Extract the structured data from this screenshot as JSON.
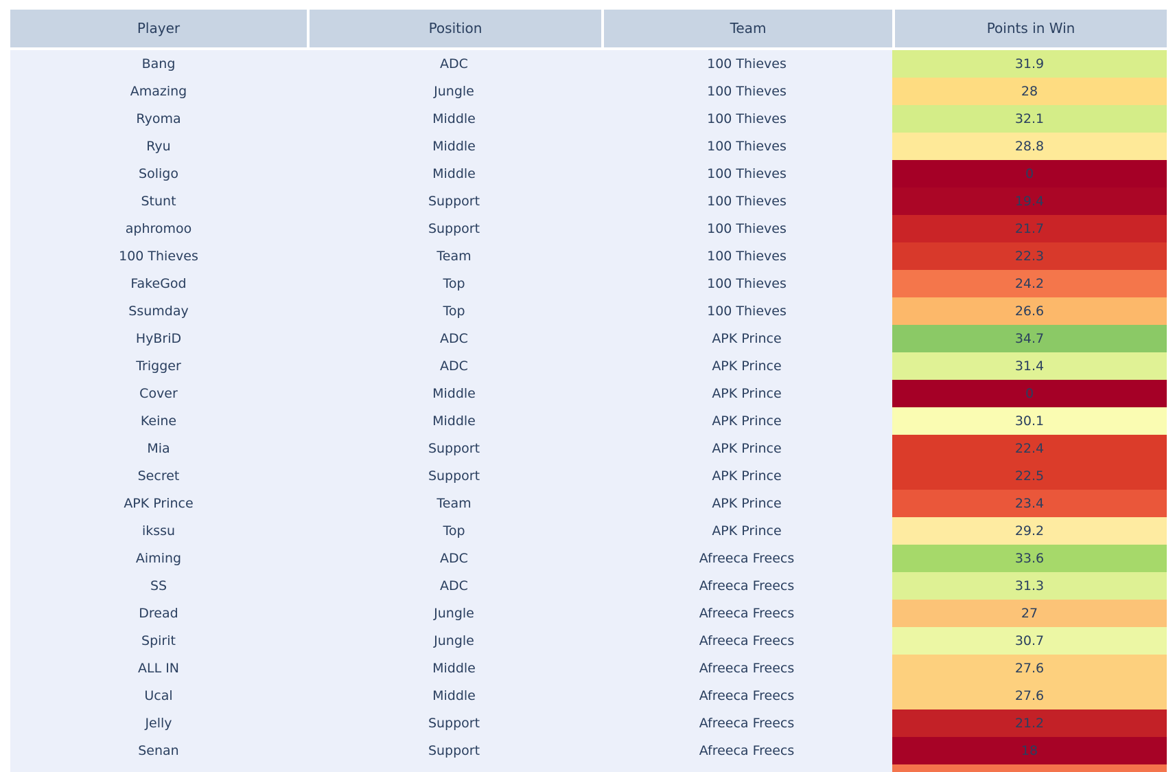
{
  "chart_data": {
    "type": "table",
    "columns": [
      "Player",
      "Position",
      "Team",
      "Points in Win"
    ],
    "rows": [
      {
        "player": "Bang",
        "position": "ADC",
        "team": "100 Thieves",
        "points": "31.9",
        "points_color": "#d9ee8b"
      },
      {
        "player": "Amazing",
        "position": "Jungle",
        "team": "100 Thieves",
        "points": "28",
        "points_color": "#fedc81"
      },
      {
        "player": "Ryoma",
        "position": "Middle",
        "team": "100 Thieves",
        "points": "32.1",
        "points_color": "#d4ed88"
      },
      {
        "player": "Ryu",
        "position": "Middle",
        "team": "100 Thieves",
        "points": "28.8",
        "points_color": "#fee998"
      },
      {
        "player": "Soligo",
        "position": "Middle",
        "team": "100 Thieves",
        "points": "0",
        "points_color": "#a50026"
      },
      {
        "player": "Stunt",
        "position": "Support",
        "team": "100 Thieves",
        "points": "19.4",
        "points_color": "#ab0626"
      },
      {
        "player": "aphromoo",
        "position": "Support",
        "team": "100 Thieves",
        "points": "21.7",
        "points_color": "#ca2427"
      },
      {
        "player": "100 Thieves",
        "position": "Team",
        "team": "100 Thieves",
        "points": "22.3",
        "points_color": "#d8392b"
      },
      {
        "player": "FakeGod",
        "position": "Top",
        "team": "100 Thieves",
        "points": "24.2",
        "points_color": "#f4764b"
      },
      {
        "player": "Ssumday",
        "position": "Top",
        "team": "100 Thieves",
        "points": "26.6",
        "points_color": "#fcb86a"
      },
      {
        "player": "HyBriD",
        "position": "ADC",
        "team": "APK Prince",
        "points": "34.7",
        "points_color": "#8bc966"
      },
      {
        "player": "Trigger",
        "position": "ADC",
        "team": "APK Prince",
        "points": "31.4",
        "points_color": "#e0f295"
      },
      {
        "player": "Cover",
        "position": "Middle",
        "team": "APK Prince",
        "points": "0",
        "points_color": "#a50026"
      },
      {
        "player": "Keine",
        "position": "Middle",
        "team": "APK Prince",
        "points": "30.1",
        "points_color": "#fafcb2"
      },
      {
        "player": "Mia",
        "position": "Support",
        "team": "APK Prince",
        "points": "22.4",
        "points_color": "#db3c2a"
      },
      {
        "player": "Secret",
        "position": "Support",
        "team": "APK Prince",
        "points": "22.5",
        "points_color": "#db3c2a"
      },
      {
        "player": "APK Prince",
        "position": "Team",
        "team": "APK Prince",
        "points": "23.4",
        "points_color": "#ea573a"
      },
      {
        "player": "ikssu",
        "position": "Top",
        "team": "APK Prince",
        "points": "29.2",
        "points_color": "#feeba1"
      },
      {
        "player": "Aiming",
        "position": "ADC",
        "team": "Afreeca Freecs",
        "points": "33.6",
        "points_color": "#a6d96a"
      },
      {
        "player": "SS",
        "position": "ADC",
        "team": "Afreeca Freecs",
        "points": "31.3",
        "points_color": "#def194"
      },
      {
        "player": "Dread",
        "position": "Jungle",
        "team": "Afreeca Freecs",
        "points": "27",
        "points_color": "#fcc377"
      },
      {
        "player": "Spirit",
        "position": "Jungle",
        "team": "Afreeca Freecs",
        "points": "30.7",
        "points_color": "#ecf7a4"
      },
      {
        "player": "ALL IN",
        "position": "Middle",
        "team": "Afreeca Freecs",
        "points": "27.6",
        "points_color": "#fdd07e"
      },
      {
        "player": "Ucal",
        "position": "Middle",
        "team": "Afreeca Freecs",
        "points": "27.6",
        "points_color": "#fdd07e"
      },
      {
        "player": "Jelly",
        "position": "Support",
        "team": "Afreeca Freecs",
        "points": "21.2",
        "points_color": "#c32127"
      },
      {
        "player": "Senan",
        "position": "Support",
        "team": "Afreeca Freecs",
        "points": "18",
        "points_color": "#a70326"
      }
    ],
    "partial_row": {
      "points_color": "#f4744c"
    },
    "style": {
      "page_bg": "#ffffff",
      "header_bg": "#c8d4e3",
      "body_bg": "#ecf0fa",
      "text_color": "#2a3f5f"
    },
    "layout_hints": {
      "colormap": "RdYlGn",
      "value_column": "Points in Win",
      "grid": "off",
      "legend": "none"
    }
  }
}
